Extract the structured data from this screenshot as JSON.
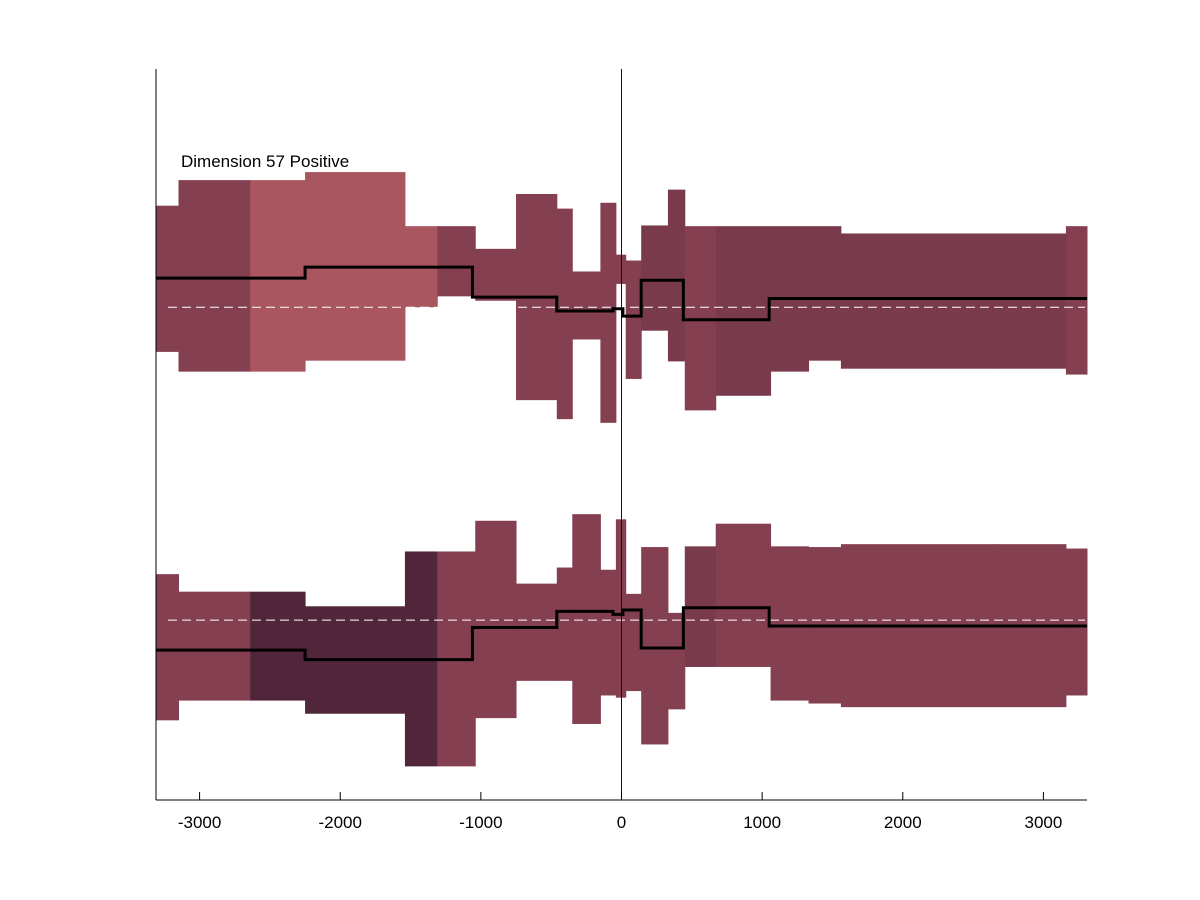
{
  "chart_data": {
    "type": "area",
    "title": "Dimension 57 Positive",
    "xlabel": "",
    "ylabel": "",
    "xlim": [
      -3310,
      3310
    ],
    "ylim": [
      0,
      100
    ],
    "xticks": [
      -3000,
      -2000,
      -1000,
      0,
      1000,
      2000,
      3000
    ],
    "xtick_labels": [
      "-3000",
      "-2000",
      "-1000",
      "0",
      "1000",
      "2000",
      "3000"
    ],
    "grid": false,
    "vline_x": 0,
    "colors": {
      "dark": "#52263A",
      "medium": "#793B4C",
      "base": "#843F50",
      "light": "#A9565F",
      "line": "#000000",
      "dashed": "#FFFFFF",
      "vline": "#0000AA"
    },
    "panels": [
      {
        "name": "",
        "baseline": 67.4,
        "segments": [
          {
            "x0": -3310,
            "x1": -3150,
            "y0": 61.3,
            "y1": 81.3,
            "shade": "base"
          },
          {
            "x0": -3150,
            "x1": -2640,
            "y0": 58.6,
            "y1": 84.8,
            "shade": "base"
          },
          {
            "x0": -2640,
            "x1": -2250,
            "y0": 58.6,
            "y1": 84.8,
            "shade": "light"
          },
          {
            "x0": -2250,
            "x1": -1540,
            "y0": 60.1,
            "y1": 85.9,
            "shade": "light"
          },
          {
            "x0": -1540,
            "x1": -1310,
            "y0": 67.4,
            "y1": 78.5,
            "shade": "light"
          },
          {
            "x0": -1310,
            "x1": -1040,
            "y0": 68.9,
            "y1": 78.5,
            "shade": "base"
          },
          {
            "x0": -1040,
            "x1": -750,
            "y0": 68.3,
            "y1": 75.4,
            "shade": "base"
          },
          {
            "x0": -750,
            "x1": -460,
            "y0": 54.7,
            "y1": 82.9,
            "shade": "base"
          },
          {
            "x0": -460,
            "x1": -350,
            "y0": 52.1,
            "y1": 80.9,
            "shade": "base"
          },
          {
            "x0": -350,
            "x1": -150,
            "y0": 63.0,
            "y1": 72.3,
            "shade": "base"
          },
          {
            "x0": -150,
            "x1": -40,
            "y0": 51.6,
            "y1": 81.7,
            "shade": "base"
          },
          {
            "x0": -40,
            "x1": 30,
            "y0": 70.6,
            "y1": 74.6,
            "shade": "base"
          },
          {
            "x0": 30,
            "x1": 140,
            "y0": 57.6,
            "y1": 73.8,
            "shade": "base"
          },
          {
            "x0": 140,
            "x1": 330,
            "y0": 64.2,
            "y1": 78.6,
            "shade": "medium"
          },
          {
            "x0": 330,
            "x1": 450,
            "y0": 60.0,
            "y1": 83.5,
            "shade": "medium"
          },
          {
            "x0": 450,
            "x1": 670,
            "y0": 53.3,
            "y1": 78.5,
            "shade": "base"
          },
          {
            "x0": 670,
            "x1": 1060,
            "y0": 55.3,
            "y1": 78.5,
            "shade": "medium"
          },
          {
            "x0": 1060,
            "x1": 1330,
            "y0": 58.6,
            "y1": 78.5,
            "shade": "medium"
          },
          {
            "x0": 1330,
            "x1": 1560,
            "y0": 60.1,
            "y1": 78.5,
            "shade": "medium"
          },
          {
            "x0": 1560,
            "x1": 2660,
            "y0": 59.0,
            "y1": 77.5,
            "shade": "medium"
          },
          {
            "x0": 2660,
            "x1": 3160,
            "y0": 59.0,
            "y1": 77.5,
            "shade": "medium"
          },
          {
            "x0": 3160,
            "x1": 3310,
            "y0": 58.2,
            "y1": 78.5,
            "shade": "base"
          }
        ],
        "line": [
          {
            "x0": -3310,
            "x1": -2250,
            "y": 71.4
          },
          {
            "x0": -2250,
            "x1": -1060,
            "y": 72.9
          },
          {
            "x0": -1060,
            "x1": -460,
            "y": 68.8
          },
          {
            "x0": -460,
            "x1": -60,
            "y": 66.9
          },
          {
            "x0": -60,
            "x1": 10,
            "y": 67.2
          },
          {
            "x0": 10,
            "x1": 140,
            "y": 66.2
          },
          {
            "x0": 140,
            "x1": 440,
            "y": 71.1
          },
          {
            "x0": 440,
            "x1": 1050,
            "y": 65.7
          },
          {
            "x0": 1050,
            "x1": 3310,
            "y": 68.6
          }
        ]
      },
      {
        "name": "",
        "baseline": 24.6,
        "segments": [
          {
            "x0": -3310,
            "x1": -3150,
            "y0": 10.9,
            "y1": 30.9,
            "shade": "base"
          },
          {
            "x0": -3150,
            "x1": -2640,
            "y0": 13.6,
            "y1": 28.5,
            "shade": "base"
          },
          {
            "x0": -2640,
            "x1": -2250,
            "y0": 13.6,
            "y1": 28.5,
            "shade": "dark"
          },
          {
            "x0": -2250,
            "x1": -1540,
            "y0": 11.8,
            "y1": 26.5,
            "shade": "dark"
          },
          {
            "x0": -1540,
            "x1": -1310,
            "y0": 4.6,
            "y1": 34.0,
            "shade": "dark"
          },
          {
            "x0": -1310,
            "x1": -1040,
            "y0": 4.6,
            "y1": 34.0,
            "shade": "base"
          },
          {
            "x0": -1040,
            "x1": -750,
            "y0": 11.2,
            "y1": 38.2,
            "shade": "base"
          },
          {
            "x0": -750,
            "x1": -460,
            "y0": 16.3,
            "y1": 29.6,
            "shade": "base"
          },
          {
            "x0": -460,
            "x1": -350,
            "y0": 16.3,
            "y1": 31.8,
            "shade": "base"
          },
          {
            "x0": -350,
            "x1": -150,
            "y0": 10.4,
            "y1": 39.1,
            "shade": "base"
          },
          {
            "x0": -150,
            "x1": -40,
            "y0": 14.3,
            "y1": 31.5,
            "shade": "base"
          },
          {
            "x0": -40,
            "x1": 30,
            "y0": 14.0,
            "y1": 38.4,
            "shade": "base"
          },
          {
            "x0": 30,
            "x1": 140,
            "y0": 14.9,
            "y1": 28.2,
            "shade": "base"
          },
          {
            "x0": 140,
            "x1": 330,
            "y0": 7.6,
            "y1": 34.6,
            "shade": "base"
          },
          {
            "x0": 330,
            "x1": 450,
            "y0": 12.4,
            "y1": 25.6,
            "shade": "base"
          },
          {
            "x0": 450,
            "x1": 670,
            "y0": 18.2,
            "y1": 34.7,
            "shade": "medium"
          },
          {
            "x0": 670,
            "x1": 1060,
            "y0": 18.2,
            "y1": 37.8,
            "shade": "base"
          },
          {
            "x0": 1060,
            "x1": 1330,
            "y0": 13.6,
            "y1": 34.7,
            "shade": "base"
          },
          {
            "x0": 1330,
            "x1": 1560,
            "y0": 13.2,
            "y1": 34.6,
            "shade": "base"
          },
          {
            "x0": 1560,
            "x1": 2660,
            "y0": 12.7,
            "y1": 35.0,
            "shade": "base"
          },
          {
            "x0": 2660,
            "x1": 3160,
            "y0": 12.7,
            "y1": 35.0,
            "shade": "base"
          },
          {
            "x0": 3160,
            "x1": 3310,
            "y0": 14.3,
            "y1": 34.4,
            "shade": "base"
          }
        ],
        "line": [
          {
            "x0": -3310,
            "x1": -2250,
            "y": 20.5
          },
          {
            "x0": -2250,
            "x1": -1060,
            "y": 19.2
          },
          {
            "x0": -1060,
            "x1": -460,
            "y": 23.6
          },
          {
            "x0": -460,
            "x1": -60,
            "y": 25.8
          },
          {
            "x0": -60,
            "x1": 10,
            "y": 25.4
          },
          {
            "x0": 10,
            "x1": 140,
            "y": 26.0
          },
          {
            "x0": 140,
            "x1": 440,
            "y": 20.8
          },
          {
            "x0": 440,
            "x1": 1050,
            "y": 26.3
          },
          {
            "x0": 1050,
            "x1": 3310,
            "y": 23.8
          }
        ]
      }
    ]
  }
}
